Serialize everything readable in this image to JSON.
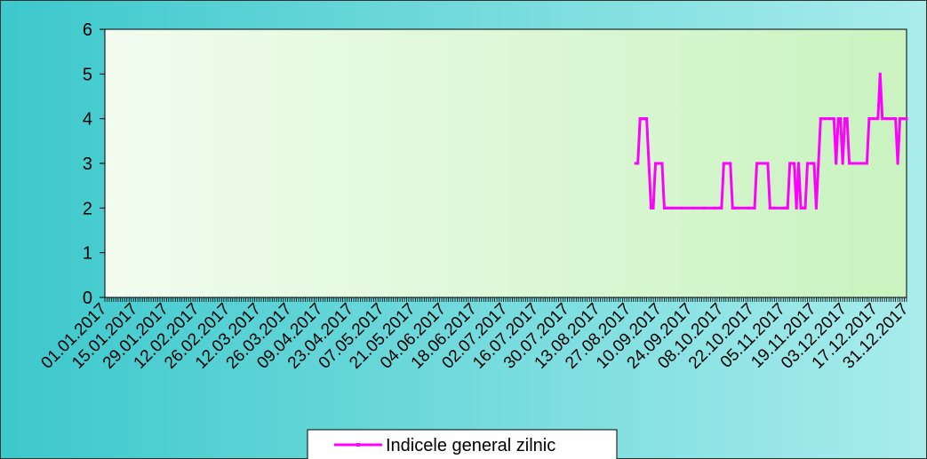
{
  "chart_data": {
    "type": "line",
    "title": "",
    "xlabel": "",
    "ylabel": "",
    "ylim": [
      0,
      6
    ],
    "yticks": [
      0,
      1,
      2,
      3,
      4,
      5,
      6
    ],
    "grid": false,
    "legend_position": "bottom",
    "x_range": [
      "01.01.2017",
      "31.12.2017"
    ],
    "x_tick_labels": [
      "01.01.2017",
      "15.01.2017",
      "29.01.2017",
      "12.02.2017",
      "26.02.2017",
      "12.03.2017",
      "26.03.2017",
      "09.04.2017",
      "23.04.2017",
      "07.05.2017",
      "21.05.2017",
      "04.06.2017",
      "18.06.2017",
      "02.07.2017",
      "16.07.2017",
      "30.07.2017",
      "13.08.2017",
      "27.08.2017",
      "10.09.2017",
      "24.09.2017",
      "08.10.2017",
      "22.10.2017",
      "05.11.2017",
      "19.11.2017",
      "03.12.2017",
      "17.12.2017",
      "31.12.2017"
    ],
    "colors": {
      "series": "#ff00ff",
      "plot_bg_left": "#f2fcef",
      "plot_bg_right": "#c9f3c0",
      "outer_bg_left": "#3cc8cc",
      "outer_bg_right": "#a9ecec",
      "axis": "#000000"
    },
    "series": [
      {
        "name": "Indicele general zilnic",
        "points": [
          [
            "30.08.2017",
            3
          ],
          [
            "31.08.2017",
            3
          ],
          [
            "01.09.2017",
            4
          ],
          [
            "02.09.2017",
            4
          ],
          [
            "03.09.2017",
            4
          ],
          [
            "04.09.2017",
            4
          ],
          [
            "05.09.2017",
            3
          ],
          [
            "06.09.2017",
            2
          ],
          [
            "07.09.2017",
            2
          ],
          [
            "08.09.2017",
            3
          ],
          [
            "09.09.2017",
            3
          ],
          [
            "10.09.2017",
            3
          ],
          [
            "11.09.2017",
            3
          ],
          [
            "12.09.2017",
            2
          ],
          [
            "13.09.2017",
            2
          ],
          [
            "15.09.2017",
            2
          ],
          [
            "20.09.2017",
            2
          ],
          [
            "25.09.2017",
            2
          ],
          [
            "30.09.2017",
            2
          ],
          [
            "05.10.2017",
            2
          ],
          [
            "08.10.2017",
            2
          ],
          [
            "09.10.2017",
            3
          ],
          [
            "10.10.2017",
            3
          ],
          [
            "11.10.2017",
            3
          ],
          [
            "12.10.2017",
            3
          ],
          [
            "13.10.2017",
            2
          ],
          [
            "15.10.2017",
            2
          ],
          [
            "20.10.2017",
            2
          ],
          [
            "23.10.2017",
            2
          ],
          [
            "24.10.2017",
            3
          ],
          [
            "25.10.2017",
            3
          ],
          [
            "27.10.2017",
            3
          ],
          [
            "29.10.2017",
            3
          ],
          [
            "30.10.2017",
            2
          ],
          [
            "01.11.2017",
            2
          ],
          [
            "05.11.2017",
            2
          ],
          [
            "07.11.2017",
            2
          ],
          [
            "08.11.2017",
            3
          ],
          [
            "09.11.2017",
            3
          ],
          [
            "10.11.2017",
            3
          ],
          [
            "11.11.2017",
            2
          ],
          [
            "12.11.2017",
            3
          ],
          [
            "13.11.2017",
            2
          ],
          [
            "14.11.2017",
            2
          ],
          [
            "15.11.2017",
            2
          ],
          [
            "16.11.2017",
            3
          ],
          [
            "17.11.2017",
            3
          ],
          [
            "18.11.2017",
            3
          ],
          [
            "19.11.2017",
            3
          ],
          [
            "20.11.2017",
            2
          ],
          [
            "21.11.2017",
            3
          ],
          [
            "22.11.2017",
            4
          ],
          [
            "24.11.2017",
            4
          ],
          [
            "26.11.2017",
            4
          ],
          [
            "28.11.2017",
            4
          ],
          [
            "29.11.2017",
            3
          ],
          [
            "30.11.2017",
            4
          ],
          [
            "01.12.2017",
            4
          ],
          [
            "02.12.2017",
            3
          ],
          [
            "03.12.2017",
            4
          ],
          [
            "04.12.2017",
            4
          ],
          [
            "05.12.2017",
            3
          ],
          [
            "07.12.2017",
            3
          ],
          [
            "09.12.2017",
            3
          ],
          [
            "11.12.2017",
            3
          ],
          [
            "13.12.2017",
            3
          ],
          [
            "14.12.2017",
            4
          ],
          [
            "16.12.2017",
            4
          ],
          [
            "18.12.2017",
            4
          ],
          [
            "19.12.2017",
            5
          ],
          [
            "20.12.2017",
            4
          ],
          [
            "22.12.2017",
            4
          ],
          [
            "24.12.2017",
            4
          ],
          [
            "26.12.2017",
            4
          ],
          [
            "27.12.2017",
            3
          ],
          [
            "28.12.2017",
            4
          ],
          [
            "29.12.2017",
            4
          ],
          [
            "30.12.2017",
            4
          ],
          [
            "31.12.2017",
            4
          ]
        ]
      }
    ]
  }
}
